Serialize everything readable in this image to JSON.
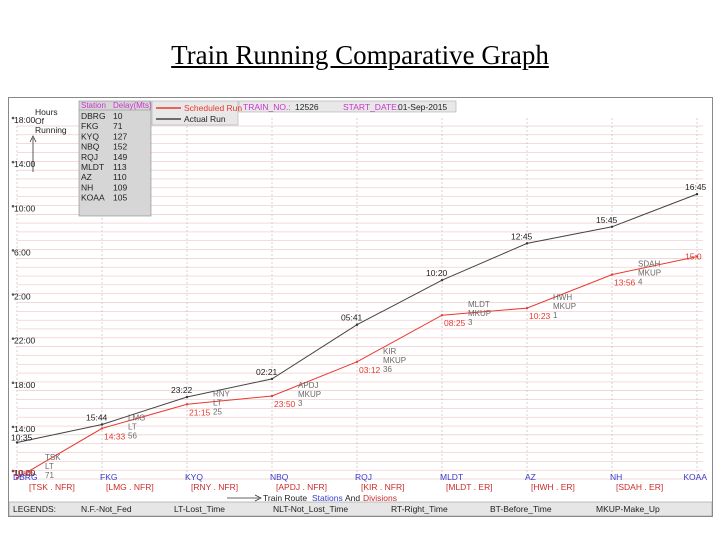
{
  "page": {
    "title": "Train Running Comparative Graph"
  },
  "header": {
    "train_no_label": "TRAIN_NO.:",
    "train_no": "12526",
    "start_date_label": "START_DATE:",
    "start_date": "01-Sep-2015",
    "yaxis_label_line1": "Hours",
    "yaxis_label_line2": "Of",
    "yaxis_label_line3": "Running"
  },
  "delay_table": {
    "col_station": "Station",
    "col_delay": "Delay(Mts)",
    "rows": [
      {
        "station": "DBRG",
        "delay": "10"
      },
      {
        "station": "FKG",
        "delay": "71"
      },
      {
        "station": "KYQ",
        "delay": "127"
      },
      {
        "station": "NBQ",
        "delay": "152"
      },
      {
        "station": "RQJ",
        "delay": "149"
      },
      {
        "station": "MLDT",
        "delay": "113"
      },
      {
        "station": "AZ",
        "delay": "110"
      },
      {
        "station": "NH",
        "delay": "109"
      },
      {
        "station": "KOAA",
        "delay": "105"
      }
    ]
  },
  "legend": {
    "scheduled": "Scheduled Run",
    "actual": "Actual Run",
    "scheduled_color": "#e8392f",
    "actual_color": "#444444"
  },
  "chart_data": {
    "type": "line",
    "x": [
      "DBRG",
      "FKG",
      "KYQ",
      "NBQ",
      "RQJ",
      "MLDT",
      "AZ",
      "NH",
      "KOAA"
    ],
    "yticks": [
      "10:00",
      "14:00",
      "18:00",
      "22:00",
      "2:00",
      "6:00",
      "10:00",
      "14:00",
      "18:00"
    ],
    "ylim": [
      0,
      100
    ],
    "series": [
      {
        "name": "Scheduled Run",
        "values": [
          0.25,
          14.33,
          21.15,
          23.5,
          33.2,
          46.4,
          48.4,
          57.9,
          63.0
        ],
        "labels": [
          "10:25",
          "14:33",
          "21:15",
          "23:50",
          "03:12",
          "08:25",
          "10:23",
          "13:56",
          "15:0"
        ]
      },
      {
        "name": "Actual Run",
        "values": [
          10.35,
          15.44,
          23.22,
          28.35,
          43.7,
          56.33,
          66.75,
          71.45,
          80.7
        ],
        "labels": [
          "10:35",
          "15:44",
          "23:22",
          "02:21",
          "05:41",
          "10:20",
          "12:45",
          "15:45",
          "16:45"
        ]
      }
    ],
    "annotations": [
      {
        "x": "DBRG",
        "lines": [
          "TSK",
          "LT",
          "71"
        ]
      },
      {
        "x": "FKG",
        "lines": [
          "LMG",
          "LT",
          "56"
        ]
      },
      {
        "x": "KYQ",
        "lines": [
          "RNY",
          "LT",
          "25"
        ]
      },
      {
        "x": "NBQ",
        "lines": [
          "APDJ",
          "MKUP",
          "3"
        ]
      },
      {
        "x": "RQJ",
        "lines": [
          "KIR",
          "MKUP",
          "36"
        ]
      },
      {
        "x": "MLDT",
        "lines": [
          "MLDT",
          "MKUP",
          "3"
        ]
      },
      {
        "x": "AZ",
        "lines": [
          "HWH",
          "MKUP",
          "1"
        ]
      },
      {
        "x": "NH",
        "lines": [
          "SDAH",
          "MKUP",
          "4"
        ]
      }
    ],
    "divisions": [
      "[TSK . NFR]",
      "[LMG . NFR]",
      "[RNY . NFR]",
      "[APDJ . NFR]",
      "[KIR . NFR]",
      "[MLDT . ER]",
      "[HWH . ER]",
      "[SDAH . ER]"
    ],
    "xlabel": "Train Route",
    "xlabel_stations": "Stations",
    "xlabel_and": "And",
    "xlabel_divisions": "Divisions",
    "grid": true
  },
  "legends_bar": {
    "label": "LEGENDS:",
    "items": [
      "N.F.-Not_Fed",
      "LT-Lost_Time",
      "NLT-Not_Lost_Time",
      "RT-Right_Time",
      "BT-Before_Time",
      "MKUP-Make_Up"
    ]
  },
  "colors": {
    "station_label": "#3a3acc",
    "division_label": "#cc2b2b",
    "grid_red": "#f2c3c3",
    "grid_gray": "#c9c9c9",
    "table_bg": "#d6d6d6",
    "header_bg": "#e8e8e8",
    "magenta": "#cc33cc"
  }
}
